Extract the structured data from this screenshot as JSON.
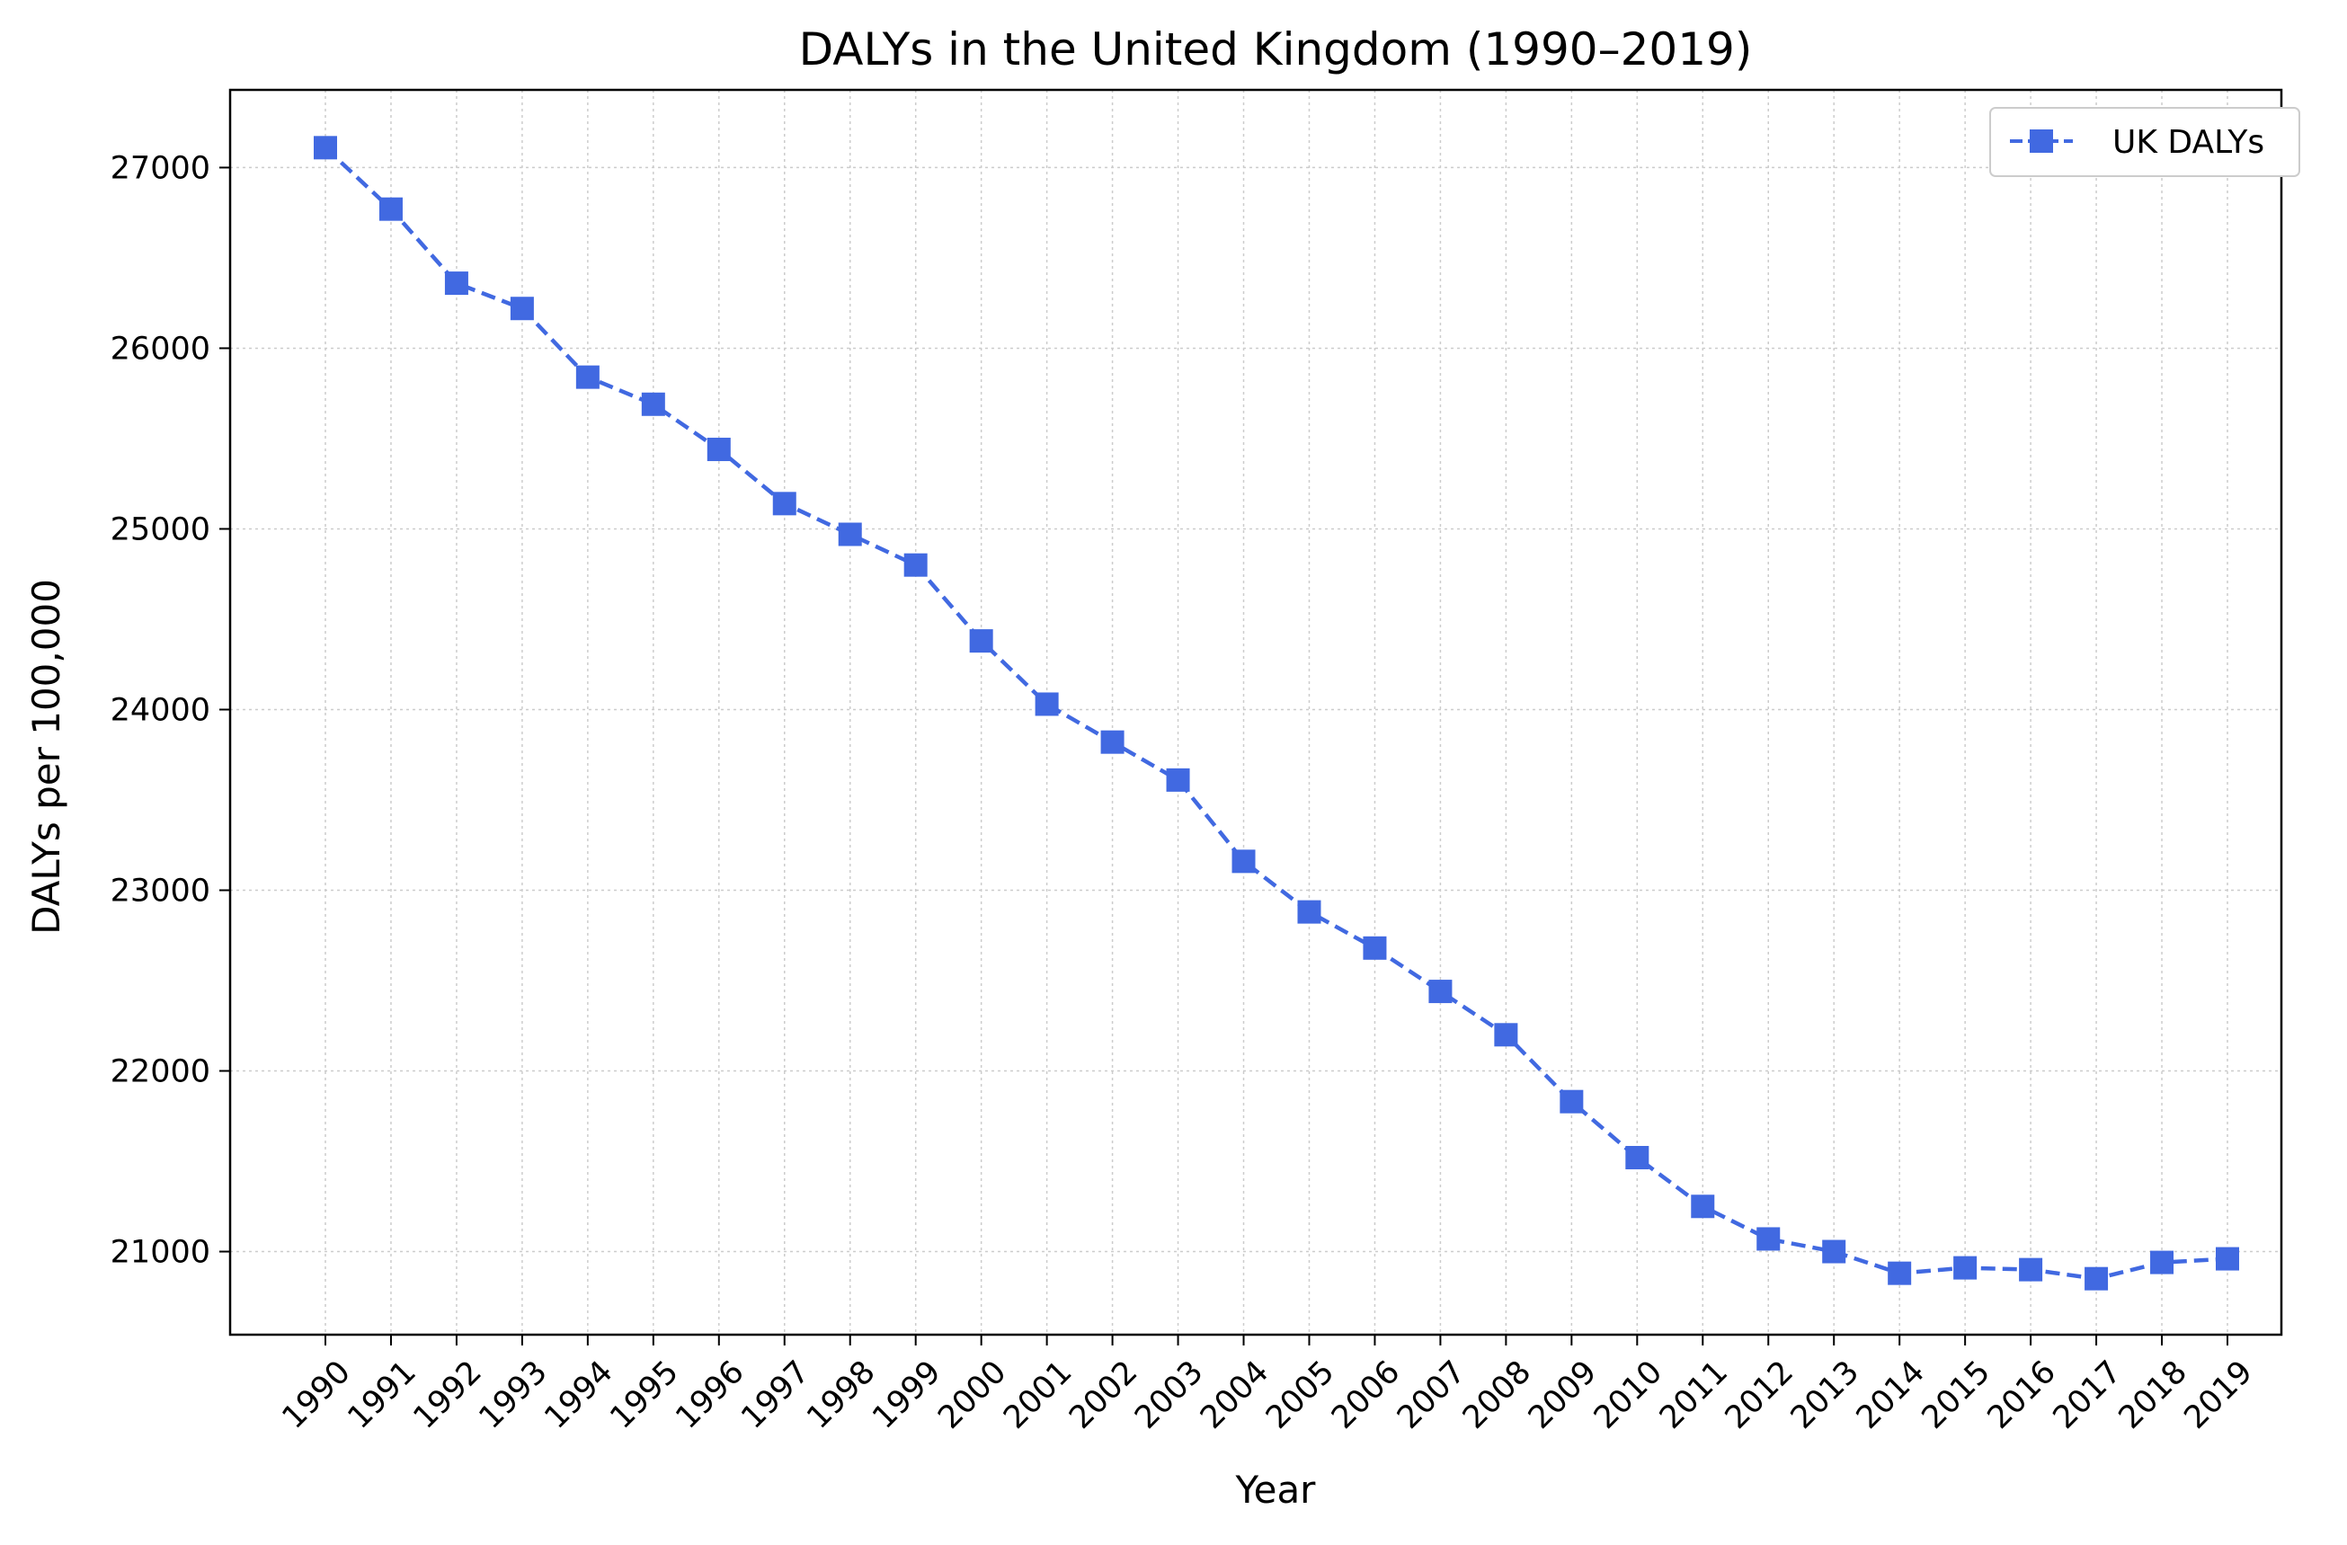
{
  "chart_data": {
    "type": "line",
    "title": "DALYs in the United Kingdom (1990–2019)",
    "xlabel": "Year",
    "ylabel": "DALYs per 100,000",
    "x": [
      "1990",
      "1991",
      "1992",
      "1993",
      "1994",
      "1995",
      "1996",
      "1997",
      "1998",
      "1999",
      "2000",
      "2001",
      "2002",
      "2003",
      "2004",
      "2005",
      "2006",
      "2007",
      "2008",
      "2009",
      "2010",
      "2011",
      "2012",
      "2013",
      "2014",
      "2015",
      "2016",
      "2017",
      "2018",
      "2019"
    ],
    "series": [
      {
        "name": "UK DALYs",
        "color": "#4169e1",
        "line_style": "dashed",
        "marker": "square",
        "values": [
          27110,
          26770,
          26360,
          26220,
          25840,
          25690,
          25440,
          25140,
          24970,
          24800,
          24380,
          24030,
          23820,
          23610,
          23160,
          22880,
          22680,
          22440,
          22200,
          21830,
          21520,
          21250,
          21070,
          21000,
          20880,
          20910,
          20900,
          20850,
          20940,
          20960
        ]
      }
    ],
    "ylim": [
      20540,
      27430
    ],
    "yticks": [
      21000,
      22000,
      23000,
      24000,
      25000,
      26000,
      27000
    ],
    "ytick_labels": [
      "21000",
      "22000",
      "23000",
      "24000",
      "25000",
      "26000",
      "27000"
    ],
    "xtick_rotation": 45,
    "grid": true,
    "grid_style": "dotted",
    "legend": {
      "position": "top-right",
      "label": "UK DALYs"
    }
  }
}
